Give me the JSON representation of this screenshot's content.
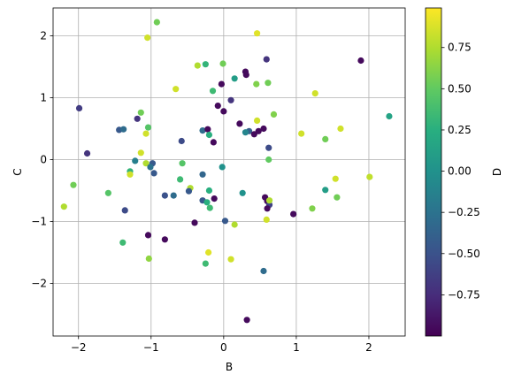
{
  "chart_data": {
    "type": "scatter",
    "title": "",
    "xlabel": "B",
    "ylabel": "C",
    "colorbar_label": "D",
    "grid": true,
    "xlim": [
      -2.35,
      2.5
    ],
    "ylim": [
      -2.85,
      2.45
    ],
    "xticks": [
      -2,
      -1,
      0,
      1,
      2
    ],
    "yticks": [
      -2,
      -1,
      0,
      1,
      2
    ],
    "colorbar_range": [
      -1.0,
      0.99
    ],
    "colorbar_ticks": [
      0.75,
      0.5,
      0.25,
      0.0,
      -0.25,
      -0.5,
      -0.75
    ],
    "colormap": "viridis",
    "points": [
      {
        "x": -0.92,
        "y": 2.22,
        "c": 0.55
      },
      {
        "x": -1.05,
        "y": 1.97,
        "c": 0.85
      },
      {
        "x": 0.46,
        "y": 2.04,
        "c": 0.9
      },
      {
        "x": -0.36,
        "y": 1.52,
        "c": 0.75
      },
      {
        "x": -0.25,
        "y": 1.54,
        "c": 0.3
      },
      {
        "x": -0.01,
        "y": 1.55,
        "c": 0.55
      },
      {
        "x": 0.59,
        "y": 1.62,
        "c": -0.7
      },
      {
        "x": 1.89,
        "y": 1.6,
        "c": -0.95
      },
      {
        "x": 0.3,
        "y": 1.42,
        "c": -0.95
      },
      {
        "x": 0.31,
        "y": 1.37,
        "c": -0.95
      },
      {
        "x": 0.15,
        "y": 1.31,
        "c": 0.1
      },
      {
        "x": 0.45,
        "y": 1.22,
        "c": 0.6
      },
      {
        "x": 0.61,
        "y": 1.24,
        "c": 0.55
      },
      {
        "x": -0.03,
        "y": 1.22,
        "c": -0.95
      },
      {
        "x": -0.66,
        "y": 1.14,
        "c": 0.85
      },
      {
        "x": -0.15,
        "y": 1.11,
        "c": 0.35
      },
      {
        "x": 1.26,
        "y": 1.07,
        "c": 0.85
      },
      {
        "x": 0.1,
        "y": 0.96,
        "c": -0.7
      },
      {
        "x": -0.08,
        "y": 0.87,
        "c": -0.95
      },
      {
        "x": -1.99,
        "y": 0.83,
        "c": -0.65
      },
      {
        "x": 0.0,
        "y": 0.78,
        "c": -0.95
      },
      {
        "x": -1.14,
        "y": 0.76,
        "c": 0.55
      },
      {
        "x": 0.69,
        "y": 0.73,
        "c": 0.6
      },
      {
        "x": 2.28,
        "y": 0.7,
        "c": 0.15
      },
      {
        "x": -1.19,
        "y": 0.66,
        "c": -0.7
      },
      {
        "x": 0.46,
        "y": 0.63,
        "c": 0.85
      },
      {
        "x": 0.22,
        "y": 0.58,
        "c": -0.95
      },
      {
        "x": -1.04,
        "y": 0.52,
        "c": 0.45
      },
      {
        "x": -1.44,
        "y": 0.48,
        "c": -0.45
      },
      {
        "x": -1.38,
        "y": 0.49,
        "c": -0.3
      },
      {
        "x": -0.29,
        "y": 0.47,
        "c": -0.3
      },
      {
        "x": -0.22,
        "y": 0.49,
        "c": -0.95
      },
      {
        "x": 0.35,
        "y": 0.46,
        "c": -0.4
      },
      {
        "x": 0.48,
        "y": 0.46,
        "c": -0.95
      },
      {
        "x": 0.55,
        "y": 0.5,
        "c": -0.95
      },
      {
        "x": 1.61,
        "y": 0.5,
        "c": 0.85
      },
      {
        "x": -1.07,
        "y": 0.42,
        "c": 0.85
      },
      {
        "x": 1.07,
        "y": 0.42,
        "c": 0.85
      },
      {
        "x": 0.3,
        "y": 0.44,
        "c": -0.1
      },
      {
        "x": -0.2,
        "y": 0.4,
        "c": 0.25
      },
      {
        "x": 0.42,
        "y": 0.41,
        "c": -0.95
      },
      {
        "x": -0.58,
        "y": 0.3,
        "c": -0.55
      },
      {
        "x": 1.4,
        "y": 0.33,
        "c": 0.55
      },
      {
        "x": -0.14,
        "y": 0.28,
        "c": -0.95
      },
      {
        "x": 0.62,
        "y": 0.19,
        "c": -0.55
      },
      {
        "x": -1.88,
        "y": 0.1,
        "c": -0.7
      },
      {
        "x": -1.14,
        "y": 0.11,
        "c": 0.85
      },
      {
        "x": -1.22,
        "y": -0.02,
        "c": -0.15
      },
      {
        "x": 0.62,
        "y": 0.0,
        "c": 0.5
      },
      {
        "x": -1.07,
        "y": -0.06,
        "c": 0.75
      },
      {
        "x": -0.98,
        "y": -0.06,
        "c": -0.45
      },
      {
        "x": -0.57,
        "y": -0.06,
        "c": 0.45
      },
      {
        "x": -1.29,
        "y": -0.19,
        "c": 0.3
      },
      {
        "x": -1.29,
        "y": -0.24,
        "c": 0.85
      },
      {
        "x": -0.96,
        "y": -0.22,
        "c": -0.45
      },
      {
        "x": -1.01,
        "y": -0.12,
        "c": -0.25
      },
      {
        "x": -0.02,
        "y": -0.12,
        "c": 0.0
      },
      {
        "x": -0.29,
        "y": -0.24,
        "c": -0.35
      },
      {
        "x": -0.6,
        "y": -0.32,
        "c": 0.35
      },
      {
        "x": -0.46,
        "y": -0.46,
        "c": 0.75
      },
      {
        "x": -0.48,
        "y": -0.51,
        "c": -0.45
      },
      {
        "x": -0.2,
        "y": -0.5,
        "c": 0.25
      },
      {
        "x": 0.26,
        "y": -0.54,
        "c": 0.0
      },
      {
        "x": -1.59,
        "y": -0.54,
        "c": 0.45
      },
      {
        "x": -0.69,
        "y": -0.58,
        "c": -0.3
      },
      {
        "x": -0.81,
        "y": -0.58,
        "c": -0.5
      },
      {
        "x": -2.07,
        "y": -0.41,
        "c": 0.55
      },
      {
        "x": 1.4,
        "y": -0.49,
        "c": 0.1
      },
      {
        "x": -0.13,
        "y": -0.63,
        "c": -0.95
      },
      {
        "x": -0.29,
        "y": -0.66,
        "c": -0.45
      },
      {
        "x": -0.23,
        "y": -0.69,
        "c": 0.25
      },
      {
        "x": -0.19,
        "y": -0.78,
        "c": 0.35
      },
      {
        "x": 0.57,
        "y": -0.61,
        "c": -0.95
      },
      {
        "x": 0.6,
        "y": -0.67,
        "c": -0.95
      },
      {
        "x": 0.63,
        "y": -0.73,
        "c": -0.6
      },
      {
        "x": 0.63,
        "y": -0.66,
        "c": 0.75
      },
      {
        "x": 0.6,
        "y": -0.79,
        "c": -0.95
      },
      {
        "x": 1.56,
        "y": -0.61,
        "c": 0.55
      },
      {
        "x": -2.2,
        "y": -0.76,
        "c": 0.75
      },
      {
        "x": 0.02,
        "y": -0.99,
        "c": -0.45
      },
      {
        "x": -1.36,
        "y": -0.82,
        "c": -0.55
      },
      {
        "x": -0.4,
        "y": -1.02,
        "c": -0.95
      },
      {
        "x": 0.15,
        "y": -1.05,
        "c": 0.75
      },
      {
        "x": 0.59,
        "y": -0.97,
        "c": 0.85
      },
      {
        "x": 0.96,
        "y": -0.88,
        "c": -0.95
      },
      {
        "x": 1.22,
        "y": -0.79,
        "c": 0.6
      },
      {
        "x": 1.54,
        "y": -0.31,
        "c": 0.85
      },
      {
        "x": 2.01,
        "y": -0.28,
        "c": 0.8
      },
      {
        "x": -1.04,
        "y": -1.22,
        "c": -0.95
      },
      {
        "x": -0.81,
        "y": -1.29,
        "c": -0.95
      },
      {
        "x": -1.39,
        "y": -1.34,
        "c": 0.35
      },
      {
        "x": -0.21,
        "y": -1.5,
        "c": 0.9
      },
      {
        "x": -1.03,
        "y": -1.6,
        "c": 0.65
      },
      {
        "x": 0.1,
        "y": -1.61,
        "c": 0.85
      },
      {
        "x": -0.25,
        "y": -1.68,
        "c": 0.35
      },
      {
        "x": 0.55,
        "y": -1.8,
        "c": -0.3
      },
      {
        "x": 0.32,
        "y": -2.59,
        "c": -0.95
      }
    ]
  }
}
